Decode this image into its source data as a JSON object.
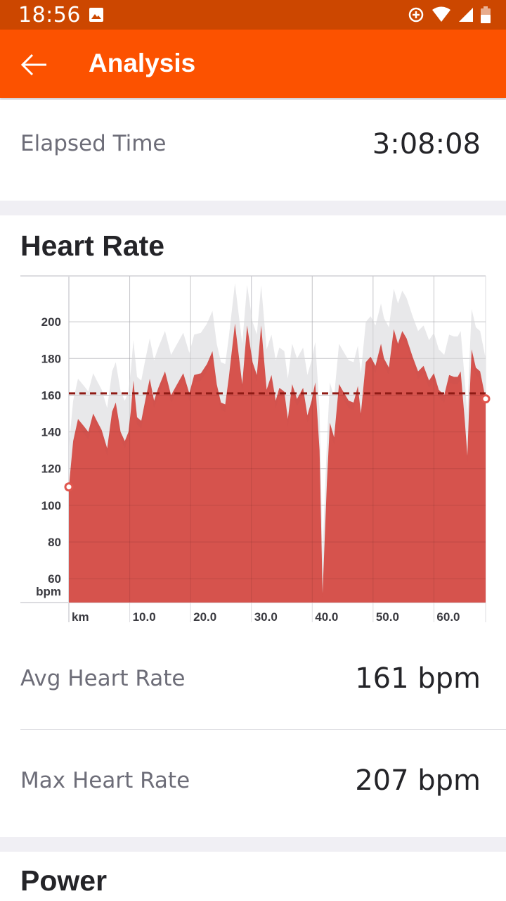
{
  "status_bar": {
    "time": "18:56"
  },
  "app_bar": {
    "title": "Analysis"
  },
  "elapsed": {
    "label": "Elapsed Time",
    "value": "3:08:08"
  },
  "heart_rate_section": {
    "title": "Heart Rate"
  },
  "chart_data": {
    "type": "area",
    "x_unit": "km",
    "y_unit": "bpm",
    "x_ticks": [
      "10.0",
      "20.0",
      "30.0",
      "40.0",
      "50.0",
      "60.0"
    ],
    "y_ticks": [
      200,
      180,
      160,
      140,
      120,
      100,
      80,
      60
    ],
    "ylim": [
      47,
      225
    ],
    "xlim": [
      0,
      68.5
    ],
    "average_line": 161,
    "grid": true,
    "series": [
      {
        "values": [
          [
            0,
            110
          ],
          [
            0.7,
            135
          ],
          [
            1.5,
            147
          ],
          [
            2.5,
            143
          ],
          [
            3.2,
            140
          ],
          [
            4,
            150
          ],
          [
            4.6,
            146
          ],
          [
            5.4,
            141
          ],
          [
            6.3,
            131
          ],
          [
            7.1,
            151
          ],
          [
            7.7,
            156
          ],
          [
            8.5,
            140
          ],
          [
            9.2,
            135
          ],
          [
            9.8,
            140
          ],
          [
            10.2,
            152
          ],
          [
            10.6,
            168
          ],
          [
            11.2,
            148
          ],
          [
            11.9,
            146
          ],
          [
            12.6,
            158
          ],
          [
            13.3,
            169
          ],
          [
            14,
            157
          ],
          [
            14.7,
            164
          ],
          [
            15.8,
            173
          ],
          [
            16.8,
            160
          ],
          [
            17.8,
            166
          ],
          [
            18.8,
            172
          ],
          [
            19.8,
            161
          ],
          [
            20.6,
            171
          ],
          [
            21.7,
            172
          ],
          [
            22.7,
            177
          ],
          [
            23.6,
            184
          ],
          [
            24.3,
            166
          ],
          [
            25,
            156
          ],
          [
            25.7,
            155
          ],
          [
            26.3,
            170
          ],
          [
            27.3,
            199
          ],
          [
            27.8,
            185
          ],
          [
            28.5,
            166
          ],
          [
            29.3,
            198
          ],
          [
            30.2,
            178
          ],
          [
            30.9,
            171
          ],
          [
            31.6,
            198
          ],
          [
            32.5,
            163
          ],
          [
            33.3,
            171
          ],
          [
            34,
            157
          ],
          [
            34.6,
            164
          ],
          [
            35.4,
            162
          ],
          [
            36,
            147
          ],
          [
            36.7,
            166
          ],
          [
            37.5,
            158
          ],
          [
            38.5,
            164
          ],
          [
            39.2,
            149
          ],
          [
            39.9,
            157
          ],
          [
            40.5,
            167
          ],
          [
            41.2,
            130
          ],
          [
            41.7,
            52
          ],
          [
            42.4,
            112
          ],
          [
            42.9,
            145
          ],
          [
            43.6,
            137
          ],
          [
            44.4,
            166
          ],
          [
            45.1,
            162
          ],
          [
            46,
            157
          ],
          [
            46.8,
            156
          ],
          [
            47.5,
            165
          ],
          [
            48,
            150
          ],
          [
            48.8,
            178
          ],
          [
            49.6,
            181
          ],
          [
            50.4,
            176
          ],
          [
            51.3,
            188
          ],
          [
            51.8,
            180
          ],
          [
            52.6,
            175
          ],
          [
            53.4,
            196
          ],
          [
            54.1,
            188
          ],
          [
            54.8,
            195
          ],
          [
            55.5,
            191
          ],
          [
            56.5,
            181
          ],
          [
            57.4,
            173
          ],
          [
            58.3,
            176
          ],
          [
            59.2,
            168
          ],
          [
            60,
            172
          ],
          [
            60.8,
            163
          ],
          [
            61.7,
            160
          ],
          [
            62.5,
            171
          ],
          [
            63.3,
            170
          ],
          [
            63.9,
            170
          ],
          [
            64.4,
            173
          ],
          [
            65.1,
            145
          ],
          [
            65.5,
            127
          ],
          [
            65.8,
            154
          ],
          [
            66.2,
            185
          ],
          [
            66.9,
            175
          ],
          [
            67.6,
            173
          ],
          [
            68.5,
            158
          ]
        ]
      }
    ]
  },
  "avg_hr": {
    "label": "Avg Heart Rate",
    "value": "161 bpm"
  },
  "max_hr": {
    "label": "Max Heart Rate",
    "value": "207 bpm"
  },
  "power_section": {
    "title": "Power"
  },
  "colors": {
    "app_bar": "#fc5200",
    "status_bar": "#cc4700",
    "hr_fill": "#d2524d",
    "hr_fill_light": "#e0564e",
    "avg_line": "#8e1a14",
    "background_band": "#e8e8ea"
  }
}
